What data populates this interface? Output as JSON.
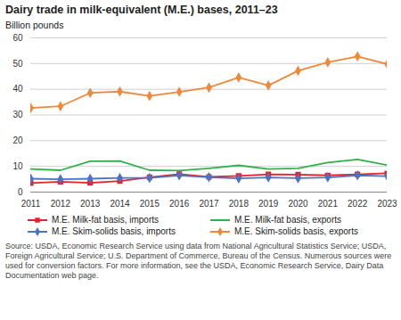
{
  "chart_data": {
    "type": "line",
    "title": "Dairy trade in milk-equivalent (M.E.) bases, 2011–23",
    "subtitle": "Billion pounds",
    "caption": "Source: USDA, Economic Research Service using data from National Agricultural Statistics Service; USDA, Foreign Agricultural Service; U.S. Department of Commerce, Bureau of the Census. Numerous sources were used for conversion factors. For more information, see the USDA, Economic Research Service, Dairy Data Documentation web page.",
    "x": [
      2011,
      2012,
      2013,
      2014,
      2015,
      2016,
      2017,
      2018,
      2019,
      2020,
      2021,
      2022,
      2023
    ],
    "xlim": [
      2011,
      2023
    ],
    "xticks": [
      2011,
      2012,
      2013,
      2014,
      2015,
      2016,
      2017,
      2018,
      2019,
      2020,
      2021,
      2022,
      2023
    ],
    "ylim": [
      0,
      60
    ],
    "yticks": [
      0,
      10,
      20,
      30,
      40,
      50,
      60
    ],
    "grid": true,
    "legend": "bottom",
    "series": [
      {
        "name": "M.E. Milk-fat basis, imports",
        "color": "#e8202a",
        "marker": "square",
        "values": [
          3.5,
          4.0,
          3.6,
          4.3,
          5.8,
          7.0,
          5.9,
          6.3,
          6.9,
          6.8,
          6.5,
          6.9,
          7.3
        ]
      },
      {
        "name": "M.E. Milk-fat basis, exports",
        "color": "#2db34a",
        "marker": "none",
        "values": [
          9.0,
          8.5,
          12.0,
          12.1,
          8.5,
          8.4,
          9.2,
          10.4,
          9.0,
          9.2,
          11.5,
          12.7,
          10.5
        ]
      },
      {
        "name": "M.E. Skim-solids basis, imports",
        "color": "#4a74c4",
        "marker": "diamond",
        "values": [
          5.2,
          5.0,
          5.2,
          5.5,
          5.5,
          6.5,
          5.8,
          5.3,
          5.7,
          5.4,
          5.7,
          6.5,
          6.2
        ]
      },
      {
        "name": "M.E. Skim-solids basis, exports",
        "color": "#f0883c",
        "marker": "diamond",
        "values": [
          32.7,
          33.4,
          38.6,
          39.1,
          37.4,
          39.0,
          40.7,
          44.6,
          41.5,
          47.2,
          50.5,
          52.8,
          49.8
        ]
      }
    ]
  }
}
